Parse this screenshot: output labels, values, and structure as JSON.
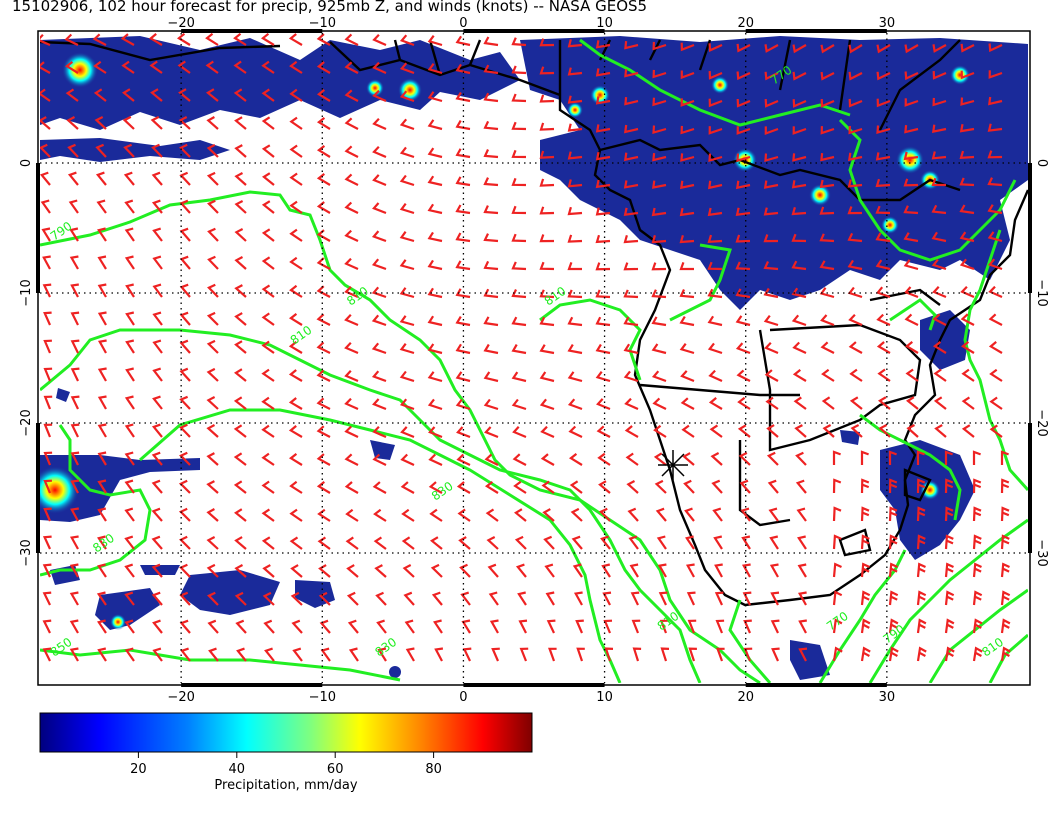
{
  "title": "15102906, 102 hour forecast for precip, 925mb Z, and winds (knots) -- NASA GEOS5",
  "map": {
    "lon_range": [
      -30,
      40
    ],
    "lat_range": [
      -40,
      10
    ],
    "lon_ticks": [
      {
        "value": -20,
        "label": "−20"
      },
      {
        "value": -10,
        "label": "−10"
      },
      {
        "value": 0,
        "label": "0"
      },
      {
        "value": 10,
        "label": "10"
      },
      {
        "value": 20,
        "label": "20"
      },
      {
        "value": 30,
        "label": "30"
      }
    ],
    "lat_ticks": [
      {
        "value": 0,
        "label": "0"
      },
      {
        "value": -10,
        "label": "−10"
      },
      {
        "value": -20,
        "label": "−20"
      },
      {
        "value": -30,
        "label": "−30"
      }
    ],
    "contour_labels": [
      {
        "label": "790",
        "lon": -29,
        "lat": -6
      },
      {
        "label": "810",
        "lon": -8,
        "lat": -11
      },
      {
        "label": "810",
        "lon": -12,
        "lat": -14
      },
      {
        "label": "830",
        "lon": -2,
        "lat": -26
      },
      {
        "label": "830",
        "lon": -26,
        "lat": -30
      },
      {
        "label": "850",
        "lon": -29,
        "lat": -38
      },
      {
        "label": "830",
        "lon": -6,
        "lat": -38
      },
      {
        "label": "810",
        "lon": 6,
        "lat": -11
      },
      {
        "label": "810",
        "lon": 14,
        "lat": -36
      },
      {
        "label": "770",
        "lon": 26,
        "lat": -36
      },
      {
        "label": "790",
        "lon": 30,
        "lat": -37
      },
      {
        "label": "810",
        "lon": 37,
        "lat": -38
      },
      {
        "label": "770",
        "lon": 22,
        "lat": 6
      }
    ],
    "colors": {
      "contour": "#22ee22",
      "wind_barb": "#ee2222",
      "coast": "#000000",
      "precip_low": "#1a2a9a",
      "precip_high": "#c00000"
    }
  },
  "colorbar": {
    "label": "Precipitation, mm/day",
    "ticks": [
      {
        "value": 20,
        "label": "20"
      },
      {
        "value": 40,
        "label": "40"
      },
      {
        "value": 60,
        "label": "60"
      },
      {
        "value": 80,
        "label": "80"
      }
    ],
    "range": [
      0,
      100
    ],
    "colors": [
      "#00007f",
      "#0000ff",
      "#007fff",
      "#00ffff",
      "#7fff7f",
      "#ffff00",
      "#ff7f00",
      "#ff0000",
      "#7f0000"
    ]
  }
}
